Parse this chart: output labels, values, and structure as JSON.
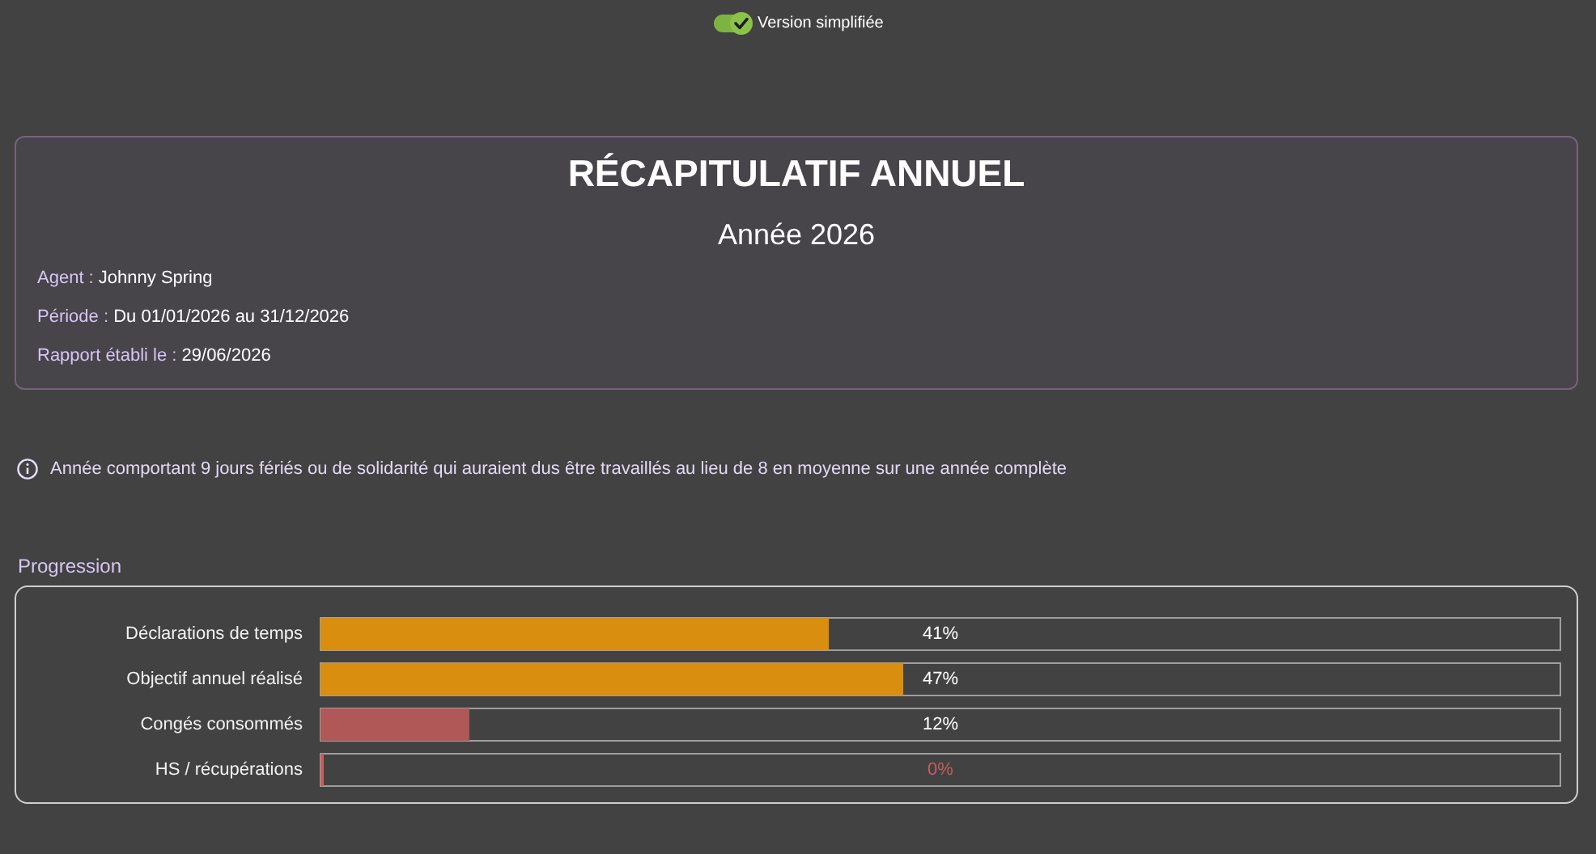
{
  "chart_data": {
    "type": "bar",
    "orientation": "horizontal",
    "title": "RÉCAPITULATIF ANNUEL",
    "subtitle": "Année 2026",
    "annotations": [
      "Version simplifiée",
      "Agent : Johnny Spring",
      "Période : Du 01/01/2026 au 31/12/2026",
      "Rapport établi le : 29/06/2026",
      "Année comportant 9 jours fériés ou de solidarité qui auraient dus être travaillés au lieu de 8 en moyenne sur une année complète",
      "Progression"
    ],
    "categories": [
      "Déclarations de temps",
      "Objectif annuel réalisé",
      "Congés consommés",
      "HS / récupérations"
    ],
    "values": [
      41,
      47,
      12,
      0
    ],
    "colors": [
      "#d98e0f",
      "#d98e0f",
      "#b05757",
      "#c45e5e"
    ],
    "value_labels": [
      "41%",
      "47%",
      "12%",
      "0%"
    ],
    "xlim": [
      0,
      100
    ],
    "tick_labels": "y"
  }
}
